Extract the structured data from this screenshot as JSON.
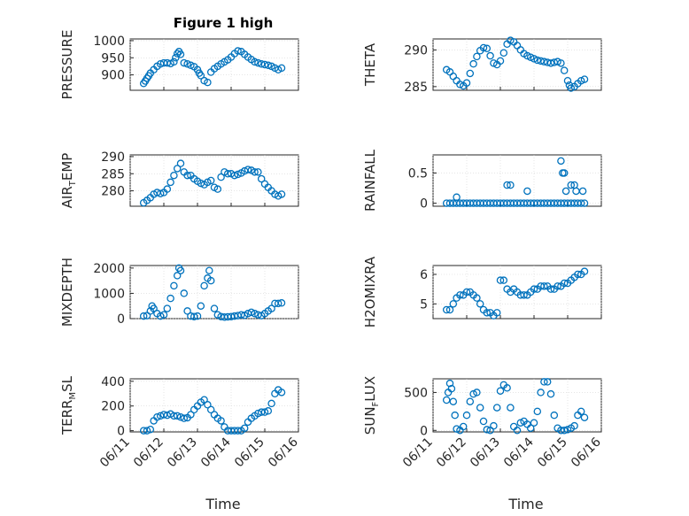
{
  "figure": {
    "title": "Figure 1 high",
    "xlabel": "Time",
    "marker_color": "#0072bd"
  },
  "chart_data": [
    {
      "type": "scatter",
      "ylabel": "PRESSURE",
      "ylabel_sub": null,
      "xlim": [
        0,
        5
      ],
      "ylim": [
        855,
        1005
      ],
      "yticks": [
        900,
        950,
        1000
      ],
      "xticks": [],
      "x": [
        0.4,
        0.45,
        0.5,
        0.55,
        0.6,
        0.7,
        0.8,
        0.9,
        1.0,
        1.1,
        1.2,
        1.3,
        1.35,
        1.4,
        1.45,
        1.5,
        1.6,
        1.7,
        1.8,
        1.9,
        2.0,
        2.05,
        2.1,
        2.2,
        2.3,
        2.4,
        2.5,
        2.6,
        2.7,
        2.8,
        2.9,
        3.0,
        3.1,
        3.2,
        3.3,
        3.4,
        3.5,
        3.6,
        3.7,
        3.8,
        3.9,
        4.0,
        4.1,
        4.2,
        4.3,
        4.4,
        4.5
      ],
      "y": [
        875,
        882,
        890,
        897,
        905,
        915,
        925,
        932,
        935,
        935,
        933,
        938,
        950,
        962,
        968,
        960,
        935,
        932,
        928,
        924,
        915,
        905,
        898,
        883,
        878,
        908,
        918,
        925,
        932,
        938,
        944,
        952,
        962,
        970,
        968,
        960,
        952,
        945,
        938,
        935,
        932,
        930,
        928,
        925,
        920,
        915,
        920
      ]
    },
    {
      "type": "scatter",
      "ylabel": "THETA",
      "ylabel_sub": null,
      "xlim": [
        0,
        5
      ],
      "ylim": [
        284.5,
        291.5
      ],
      "yticks": [
        285,
        290
      ],
      "xticks": [],
      "x": [
        0.4,
        0.5,
        0.6,
        0.7,
        0.8,
        0.9,
        1.0,
        1.1,
        1.2,
        1.3,
        1.4,
        1.5,
        1.6,
        1.7,
        1.8,
        1.9,
        2.0,
        2.1,
        2.2,
        2.3,
        2.4,
        2.5,
        2.6,
        2.7,
        2.8,
        2.9,
        3.0,
        3.1,
        3.2,
        3.3,
        3.4,
        3.5,
        3.6,
        3.7,
        3.8,
        3.9,
        4.0,
        4.05,
        4.1,
        4.2,
        4.3,
        4.4,
        4.5
      ],
      "y": [
        287.3,
        287.0,
        286.4,
        285.8,
        285.3,
        285.1,
        285.5,
        286.8,
        288.1,
        289.1,
        289.9,
        290.3,
        290.2,
        289.2,
        288.2,
        288.0,
        288.5,
        289.6,
        290.8,
        291.3,
        291.1,
        290.6,
        290.0,
        289.5,
        289.2,
        289.0,
        288.8,
        288.6,
        288.5,
        288.4,
        288.3,
        288.2,
        288.3,
        288.4,
        288.2,
        287.2,
        285.8,
        285.2,
        284.8,
        285.0,
        285.4,
        285.8,
        286.0
      ]
    },
    {
      "type": "scatter",
      "ylabel": "AIR",
      "ylabel_sub": "T",
      "ylabel_rest": "EMP",
      "xlim": [
        0,
        5
      ],
      "ylim": [
        275.5,
        290.5
      ],
      "yticks": [
        280,
        285,
        290
      ],
      "xticks": [],
      "x": [
        0.4,
        0.5,
        0.6,
        0.7,
        0.8,
        0.9,
        1.0,
        1.1,
        1.2,
        1.3,
        1.4,
        1.5,
        1.6,
        1.7,
        1.8,
        1.9,
        2.0,
        2.1,
        2.2,
        2.3,
        2.4,
        2.5,
        2.6,
        2.7,
        2.8,
        2.9,
        3.0,
        3.1,
        3.2,
        3.3,
        3.4,
        3.5,
        3.6,
        3.7,
        3.8,
        3.9,
        4.0,
        4.1,
        4.2,
        4.3,
        4.4,
        4.5
      ],
      "y": [
        276.5,
        277.2,
        278.0,
        279.0,
        279.5,
        279.2,
        279.5,
        280.5,
        282.5,
        284.5,
        286.5,
        288.0,
        285.5,
        284.5,
        284.5,
        283.5,
        282.8,
        282.2,
        281.8,
        282.5,
        283.0,
        281.0,
        280.5,
        284.0,
        285.5,
        285.0,
        285.0,
        284.5,
        284.8,
        285.2,
        285.8,
        286.2,
        286.0,
        285.5,
        285.5,
        283.5,
        282.0,
        281.0,
        280.0,
        279.0,
        278.5,
        279.0
      ]
    },
    {
      "type": "scatter",
      "ylabel": "RAINFALL",
      "ylabel_sub": null,
      "xlim": [
        0,
        5
      ],
      "ylim": [
        -0.05,
        0.8
      ],
      "yticks": [
        0,
        0.5
      ],
      "ytick_labels": [
        "0",
        "0.5"
      ],
      "xticks": [],
      "x": [
        0.4,
        0.5,
        0.6,
        0.7,
        0.8,
        0.9,
        1.0,
        1.1,
        1.2,
        1.3,
        1.4,
        1.5,
        1.6,
        1.7,
        1.8,
        1.9,
        2.0,
        2.1,
        2.2,
        2.3,
        2.4,
        2.5,
        2.6,
        2.7,
        2.8,
        2.9,
        3.0,
        3.1,
        3.2,
        3.3,
        3.4,
        3.5,
        3.6,
        3.7,
        3.8,
        3.9,
        4.0,
        4.1,
        4.2,
        4.3,
        4.4,
        4.5,
        0.7,
        2.2,
        2.3,
        2.8,
        3.8,
        3.85,
        3.9,
        3.95,
        4.1,
        4.2,
        4.25,
        4.45
      ],
      "y": [
        0,
        0,
        0,
        0,
        0,
        0,
        0,
        0,
        0,
        0,
        0,
        0,
        0,
        0,
        0,
        0,
        0,
        0,
        0,
        0,
        0,
        0,
        0,
        0,
        0,
        0,
        0,
        0,
        0,
        0,
        0,
        0,
        0,
        0,
        0,
        0,
        0,
        0,
        0,
        0,
        0,
        0,
        0.1,
        0.3,
        0.3,
        0.2,
        0.7,
        0.5,
        0.5,
        0.2,
        0.3,
        0.3,
        0.2,
        0.2
      ]
    },
    {
      "type": "scatter",
      "ylabel": "MIXDEPTH",
      "ylabel_sub": null,
      "xlim": [
        0,
        5
      ],
      "ylim": [
        0,
        2100
      ],
      "yticks": [
        0,
        1000,
        2000
      ],
      "xticks": [],
      "x": [
        0.4,
        0.5,
        0.6,
        0.65,
        0.7,
        0.8,
        0.9,
        1.0,
        1.1,
        1.2,
        1.3,
        1.4,
        1.45,
        1.5,
        1.6,
        1.7,
        1.8,
        1.9,
        2.0,
        2.1,
        2.2,
        2.3,
        2.35,
        2.4,
        2.5,
        2.6,
        2.7,
        2.8,
        2.9,
        3.0,
        3.1,
        3.2,
        3.3,
        3.4,
        3.5,
        3.6,
        3.7,
        3.8,
        3.9,
        4.0,
        4.1,
        4.2,
        4.3,
        4.4,
        4.5
      ],
      "y": [
        100,
        120,
        300,
        500,
        400,
        200,
        100,
        150,
        400,
        800,
        1300,
        1700,
        2000,
        1900,
        1000,
        300,
        100,
        80,
        100,
        500,
        1300,
        1600,
        1900,
        1500,
        400,
        150,
        80,
        60,
        70,
        80,
        100,
        120,
        150,
        130,
        200,
        250,
        200,
        150,
        120,
        200,
        300,
        400,
        600,
        600,
        620
      ]
    },
    {
      "type": "scatter",
      "ylabel": "H2OMIXRA",
      "ylabel_sub": null,
      "xlim": [
        0,
        5
      ],
      "ylim": [
        4.5,
        6.3
      ],
      "yticks": [
        5,
        6
      ],
      "xticks": [],
      "x": [
        0.4,
        0.5,
        0.6,
        0.7,
        0.8,
        0.9,
        1.0,
        1.1,
        1.2,
        1.3,
        1.4,
        1.5,
        1.6,
        1.7,
        1.8,
        1.9,
        2.0,
        2.1,
        2.2,
        2.3,
        2.4,
        2.5,
        2.6,
        2.7,
        2.8,
        2.9,
        3.0,
        3.1,
        3.2,
        3.3,
        3.4,
        3.5,
        3.6,
        3.7,
        3.8,
        3.9,
        4.0,
        4.1,
        4.2,
        4.3,
        4.4,
        4.5
      ],
      "y": [
        4.8,
        4.8,
        5.0,
        5.2,
        5.3,
        5.3,
        5.4,
        5.4,
        5.3,
        5.2,
        5.0,
        4.8,
        4.7,
        4.7,
        4.6,
        4.7,
        5.8,
        5.8,
        5.5,
        5.4,
        5.5,
        5.4,
        5.3,
        5.3,
        5.3,
        5.4,
        5.5,
        5.5,
        5.6,
        5.6,
        5.6,
        5.5,
        5.5,
        5.6,
        5.6,
        5.7,
        5.7,
        5.8,
        5.9,
        6.0,
        6.0,
        6.1
      ]
    },
    {
      "type": "scatter",
      "ylabel": "TERR",
      "ylabel_sub": "M",
      "ylabel_rest": "SL",
      "xlim": [
        0,
        5
      ],
      "ylim": [
        -10,
        420
      ],
      "yticks": [
        0,
        200,
        400
      ],
      "xticks": [
        "06/11",
        "06/12",
        "06/13",
        "06/14",
        "06/15",
        "06/16"
      ],
      "x": [
        0.4,
        0.5,
        0.6,
        0.7,
        0.8,
        0.9,
        1.0,
        1.1,
        1.2,
        1.3,
        1.4,
        1.5,
        1.6,
        1.7,
        1.8,
        1.9,
        2.0,
        2.1,
        2.2,
        2.3,
        2.4,
        2.5,
        2.6,
        2.7,
        2.8,
        2.9,
        3.0,
        3.1,
        3.2,
        3.3,
        3.4,
        3.5,
        3.6,
        3.7,
        3.8,
        3.9,
        4.0,
        4.1,
        4.2,
        4.3,
        4.4,
        4.5
      ],
      "y": [
        0,
        0,
        10,
        80,
        110,
        120,
        130,
        125,
        135,
        120,
        120,
        110,
        100,
        105,
        130,
        170,
        200,
        230,
        250,
        210,
        170,
        130,
        100,
        80,
        30,
        0,
        0,
        0,
        0,
        0,
        20,
        70,
        100,
        120,
        140,
        150,
        150,
        160,
        220,
        300,
        330,
        310
      ]
    },
    {
      "type": "scatter",
      "ylabel": "SUN",
      "ylabel_sub": "F",
      "ylabel_rest": "LUX",
      "xlim": [
        0,
        5
      ],
      "ylim": [
        -20,
        680
      ],
      "yticks": [
        0,
        500
      ],
      "xticks": [
        "06/11",
        "06/12",
        "06/13",
        "06/14",
        "06/15",
        "06/16"
      ],
      "x": [
        0.4,
        0.45,
        0.5,
        0.55,
        0.6,
        0.65,
        0.7,
        0.8,
        0.9,
        1.0,
        1.1,
        1.2,
        1.3,
        1.4,
        1.5,
        1.6,
        1.7,
        1.8,
        1.9,
        2.0,
        2.1,
        2.2,
        2.3,
        2.4,
        2.5,
        2.6,
        2.7,
        2.8,
        2.9,
        3.0,
        3.1,
        3.2,
        3.3,
        3.4,
        3.5,
        3.6,
        3.7,
        3.8,
        3.9,
        4.0,
        4.1,
        4.2,
        4.3,
        4.4,
        4.5
      ],
      "y": [
        400,
        500,
        620,
        550,
        380,
        200,
        20,
        0,
        50,
        200,
        380,
        480,
        500,
        300,
        120,
        10,
        0,
        60,
        300,
        520,
        600,
        560,
        300,
        50,
        0,
        100,
        120,
        80,
        30,
        100,
        250,
        500,
        640,
        640,
        480,
        200,
        30,
        0,
        0,
        10,
        30,
        60,
        200,
        250,
        170
      ]
    }
  ]
}
